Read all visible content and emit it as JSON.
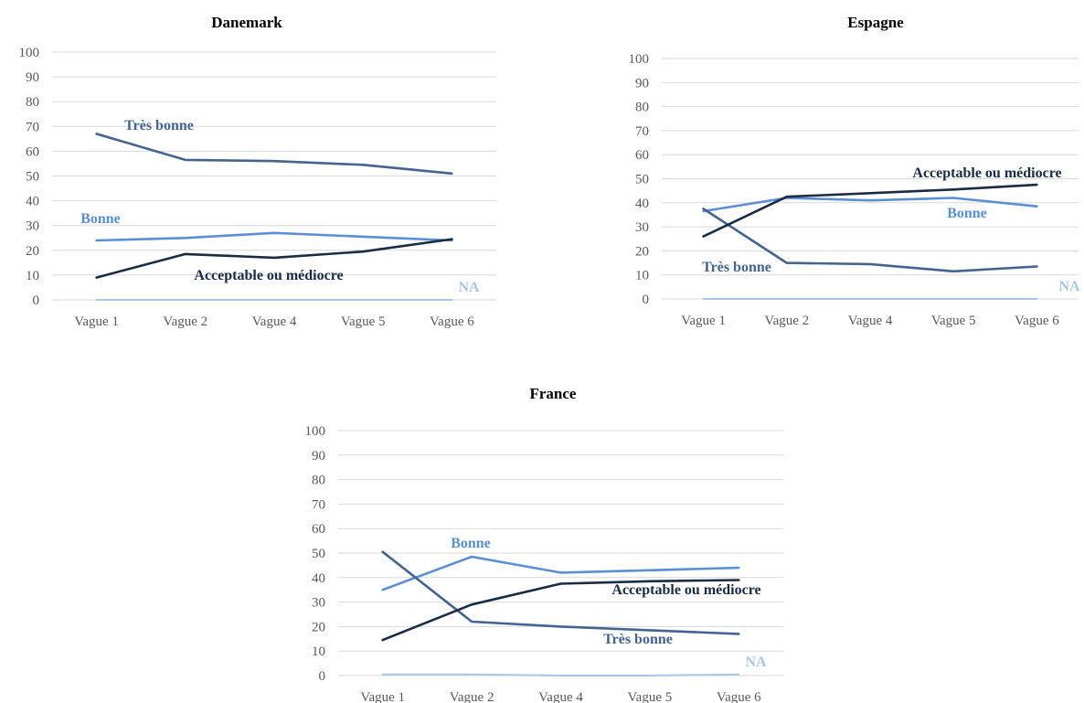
{
  "colors": {
    "tres_bonne": "#44648f",
    "bonne": "#5b8fd3",
    "acceptable": "#1a2b44",
    "na": "#a9c6e6",
    "grid": "#d9d9d9",
    "tick": "#595959"
  },
  "chart_data": [
    {
      "type": "line",
      "title": "Danemark",
      "categories": [
        "Vague 1",
        "Vague 2",
        "Vague 4",
        "Vague 5",
        "Vague 6"
      ],
      "ylim": [
        0,
        100
      ],
      "yticks": [
        "0",
        "10",
        "20",
        "30",
        "40",
        "50",
        "60",
        "70",
        "80",
        "90",
        "100"
      ],
      "grid": true,
      "series": [
        {
          "name": "Très bonne",
          "key": "tres_bonne",
          "values": [
            67,
            56.5,
            56,
            54.5,
            51
          ]
        },
        {
          "name": "Bonne",
          "key": "bonne",
          "values": [
            24,
            25,
            27,
            25.5,
            24
          ]
        },
        {
          "name": "Acceptable ou médiocre",
          "key": "acceptable",
          "values": [
            9,
            18.5,
            17,
            19.5,
            24.5
          ]
        },
        {
          "name": "NA",
          "key": "na",
          "values": [
            0,
            0,
            0,
            0,
            0
          ]
        }
      ]
    },
    {
      "type": "line",
      "title": "Espagne",
      "categories": [
        "Vague 1",
        "Vague 2",
        "Vague 4",
        "Vague 5",
        "Vague 6"
      ],
      "ylim": [
        0,
        100
      ],
      "yticks": [
        "0",
        "10",
        "20",
        "30",
        "40",
        "50",
        "60",
        "70",
        "80",
        "90",
        "100"
      ],
      "grid": true,
      "series": [
        {
          "name": "Très bonne",
          "key": "tres_bonne",
          "values": [
            37.5,
            15,
            14.5,
            11.5,
            13.5
          ]
        },
        {
          "name": "Bonne",
          "key": "bonne",
          "values": [
            36.5,
            42,
            41,
            42,
            38.5
          ]
        },
        {
          "name": "Acceptable ou médiocre",
          "key": "acceptable",
          "values": [
            26,
            42.5,
            44,
            45.5,
            47.5
          ]
        },
        {
          "name": "NA",
          "key": "na",
          "values": [
            0,
            0,
            0,
            0,
            0
          ]
        }
      ]
    },
    {
      "type": "line",
      "title": "France",
      "categories": [
        "Vague 1",
        "Vague 2",
        "Vague 4",
        "Vague 5",
        "Vague 6"
      ],
      "ylim": [
        0,
        100
      ],
      "yticks": [
        "0",
        "10",
        "20",
        "30",
        "40",
        "50",
        "60",
        "70",
        "80",
        "90",
        "100"
      ],
      "grid": true,
      "series": [
        {
          "name": "Très bonne",
          "key": "tres_bonne",
          "values": [
            50.5,
            22,
            20,
            18.5,
            17
          ]
        },
        {
          "name": "Bonne",
          "key": "bonne",
          "values": [
            35,
            48.5,
            42,
            43,
            44
          ]
        },
        {
          "name": "Acceptable ou médiocre",
          "key": "acceptable",
          "values": [
            14.5,
            29,
            37.5,
            38.5,
            39
          ]
        },
        {
          "name": "NA",
          "key": "na",
          "values": [
            0.5,
            0.5,
            0,
            0,
            0.5
          ]
        }
      ]
    }
  ]
}
